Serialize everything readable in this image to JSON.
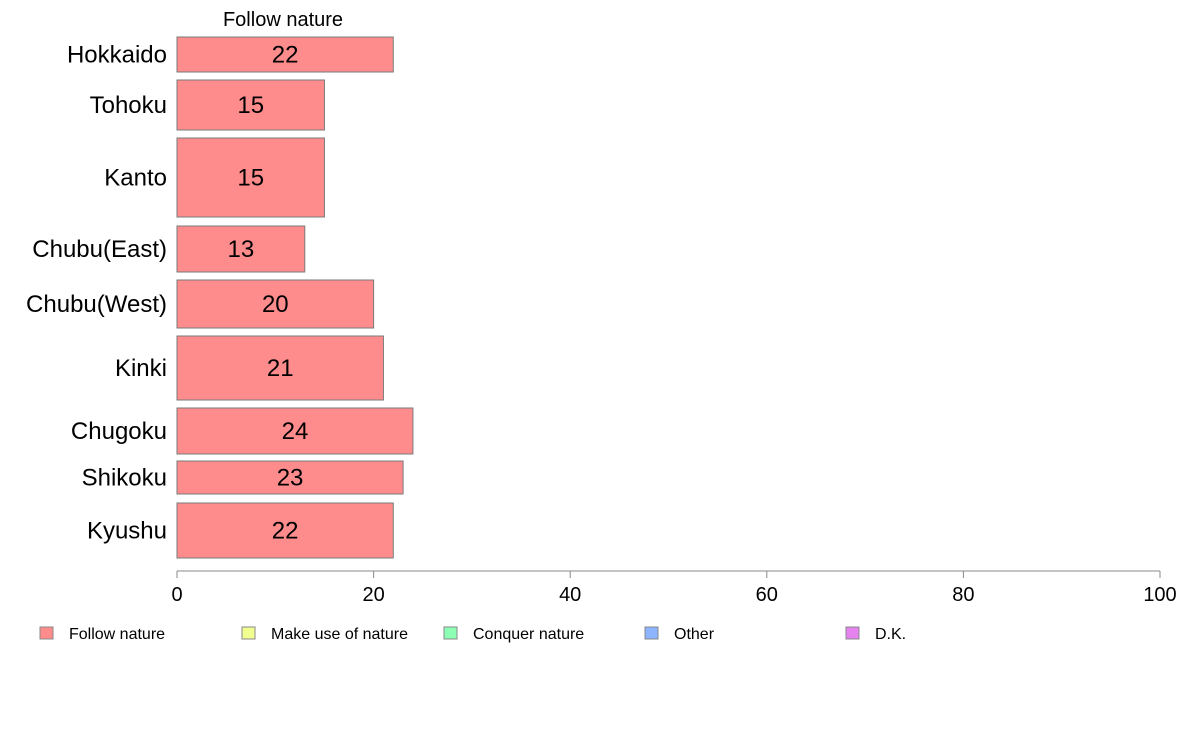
{
  "chart_data": {
    "type": "bar",
    "orientation": "horizontal",
    "title": "Follow nature",
    "categories": [
      "Hokkaido",
      "Tohoku",
      "Kanto",
      "Chubu(East)",
      "Chubu(West)",
      "Kinki",
      "Chugoku",
      "Shikoku",
      "Kyushu"
    ],
    "series": [
      {
        "name": "Follow nature",
        "values": [
          22,
          15,
          15,
          13,
          20,
          21,
          24,
          23,
          22
        ],
        "color": "#ff8c8c"
      }
    ],
    "value_labels": [
      "22",
      "15",
      "15",
      "13",
      "20",
      "21",
      "24",
      "23",
      "22"
    ],
    "xlim": [
      0,
      100
    ],
    "xticks": [
      "0",
      "20",
      "40",
      "60",
      "80",
      "100"
    ],
    "grid": false,
    "legend": {
      "placement": "bottom",
      "items": [
        {
          "label": "Follow nature",
          "color": "#ff8c8c"
        },
        {
          "label": "Make use of nature",
          "color": "#f0ff90"
        },
        {
          "label": "Conquer nature",
          "color": "#8cffb4"
        },
        {
          "label": "Other",
          "color": "#8cb4ff"
        },
        {
          "label": "D.K.",
          "color": "#e682f0"
        }
      ]
    }
  }
}
